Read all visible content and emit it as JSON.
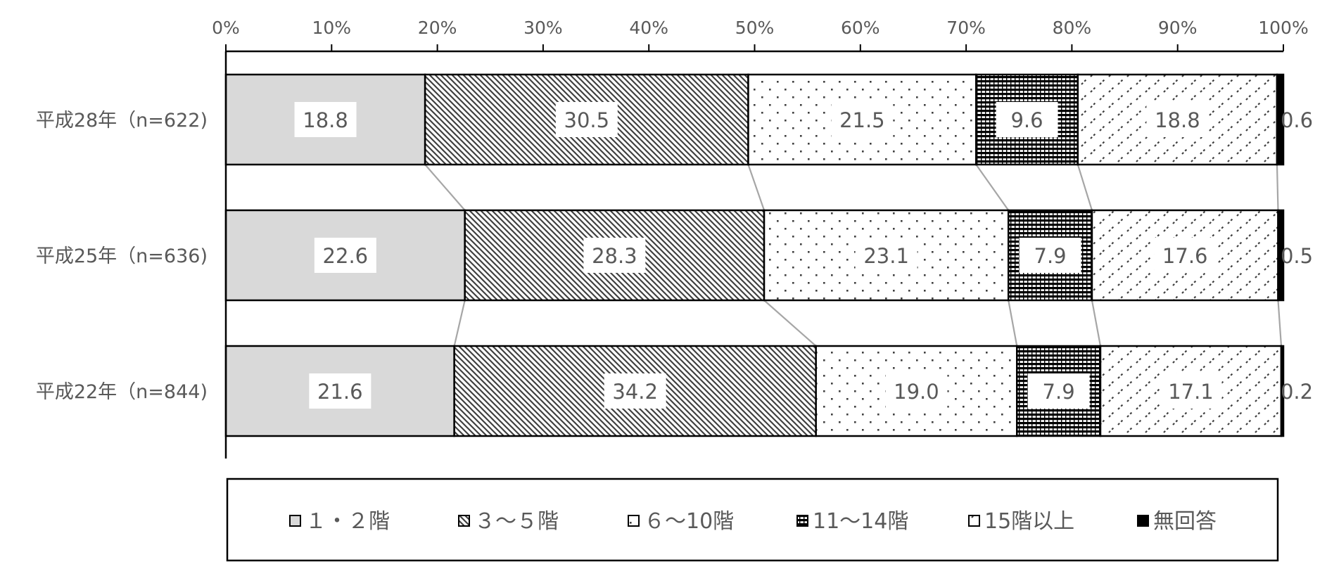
{
  "chart_data": {
    "type": "bar",
    "orientation": "horizontal",
    "stacked": "percent",
    "x_ticks": [
      "0%",
      "10%",
      "20%",
      "30%",
      "40%",
      "50%",
      "60%",
      "70%",
      "80%",
      "90%",
      "100%"
    ],
    "xlim": [
      0,
      100
    ],
    "categories": [
      "平成28年（n=622)",
      "平成25年（n=636)",
      "平成22年（n=844)"
    ],
    "series": [
      {
        "name": "１・２階",
        "values": [
          18.8,
          22.6,
          21.6
        ],
        "pattern": "solid-gray",
        "color": "#d9d9d9"
      },
      {
        "name": "３～５階",
        "values": [
          30.5,
          28.3,
          34.2
        ],
        "pattern": "diagonal-hatch",
        "color": "#404040"
      },
      {
        "name": "６～10階",
        "values": [
          21.5,
          23.1,
          19.0
        ],
        "pattern": "dots",
        "color": "#404040"
      },
      {
        "name": "11～14階",
        "values": [
          9.6,
          7.9,
          7.9
        ],
        "pattern": "horizontal-lines",
        "color": "#000000"
      },
      {
        "name": "15階以上",
        "values": [
          18.8,
          17.6,
          17.1
        ],
        "pattern": "dashes",
        "color": "#404040"
      },
      {
        "name": "無回答",
        "values": [
          0.6,
          0.5,
          0.2
        ],
        "pattern": "solid-black",
        "color": "#000000"
      }
    ],
    "data_labels": [
      [
        "18.8",
        "30.5",
        "21.5",
        "9.6",
        "18.8",
        "0.6"
      ],
      [
        "22.6",
        "28.3",
        "23.1",
        "7.9",
        "17.6",
        "0.5"
      ],
      [
        "21.6",
        "34.2",
        "19.0",
        "7.9",
        "17.1",
        "0.2"
      ]
    ],
    "legend_position": "bottom",
    "series_connector_lines": true,
    "grid": false
  }
}
